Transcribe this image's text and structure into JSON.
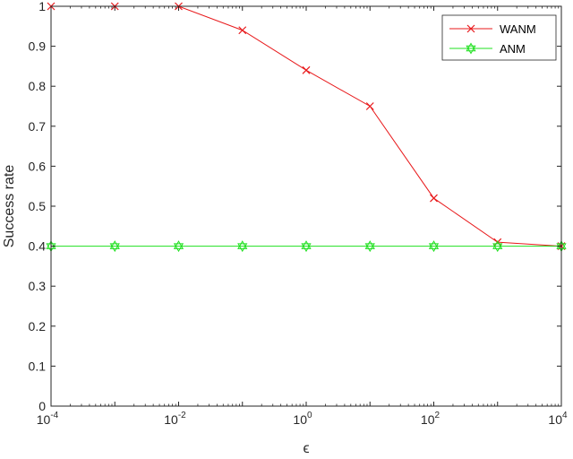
{
  "chart_data": {
    "type": "line",
    "xscale": "log",
    "x": [
      0.0001,
      0.001,
      0.01,
      0.1,
      1,
      10,
      100,
      1000,
      10000
    ],
    "xlim": [
      0.0001,
      10000
    ],
    "ylim": [
      0,
      1
    ],
    "xlabel": "ϵ",
    "ylabel": "Success rate",
    "x_ticks": [
      {
        "base": "10",
        "exp": "-4",
        "value": 0.0001
      },
      {
        "base": "10",
        "exp": "-2",
        "value": 0.01
      },
      {
        "base": "10",
        "exp": "0",
        "value": 1
      },
      {
        "base": "10",
        "exp": "2",
        "value": 100
      },
      {
        "base": "10",
        "exp": "4",
        "value": 10000
      }
    ],
    "y_ticks": [
      "0",
      "0.1",
      "0.2",
      "0.3",
      "0.4",
      "0.5",
      "0.6",
      "0.7",
      "0.8",
      "0.9",
      "1"
    ],
    "grid": false,
    "legend_position": "top-right",
    "series": [
      {
        "name": "WANM",
        "color": "#e8191b",
        "marker": "x",
        "values": [
          1.0,
          1.0,
          1.0,
          0.94,
          0.84,
          0.75,
          0.52,
          0.41,
          0.4
        ]
      },
      {
        "name": "ANM",
        "color": "#1fe01f",
        "marker": "hexagram",
        "values": [
          0.4,
          0.4,
          0.4,
          0.4,
          0.4,
          0.4,
          0.4,
          0.4,
          0.4
        ]
      }
    ]
  }
}
